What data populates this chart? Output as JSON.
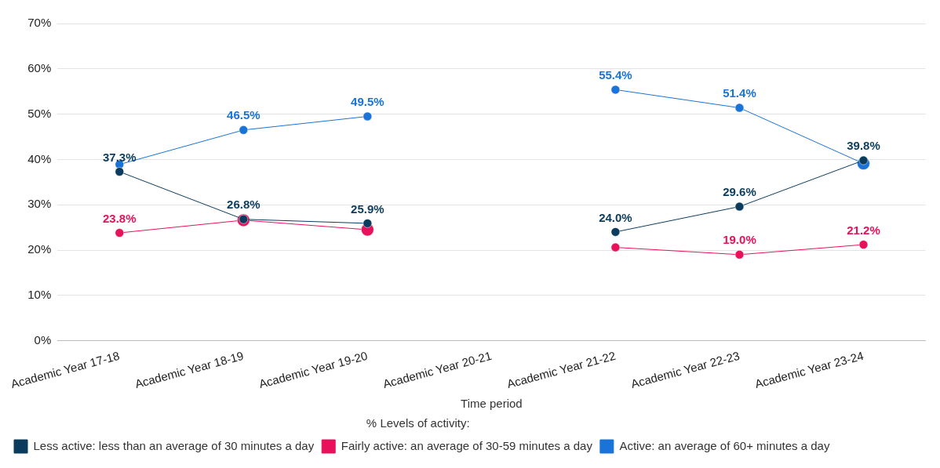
{
  "chart_data": {
    "type": "line",
    "xlabel": "Time period",
    "legend_title": "% Levels of activity:",
    "categories": [
      "Academic Year 17-18",
      "Academic Year 18-19",
      "Academic Year 19-20",
      "Academic Year 20-21",
      "Academic Year 21-22",
      "Academic Year 22-23",
      "Academic Year 23-24"
    ],
    "series": [
      {
        "name": "Less active: less than an average of 30 minutes a day",
        "color": "#0b3c5d",
        "values": [
          37.3,
          26.8,
          25.9,
          null,
          24.0,
          29.6,
          39.8
        ],
        "value_labels": [
          "37.3%",
          "26.8%",
          "25.9%",
          null,
          "24.0%",
          "29.6%",
          "39.8%"
        ]
      },
      {
        "name": "Fairly active: an average of 30-59 minutes a day",
        "color": "#e8115b",
        "values": [
          23.8,
          26.6,
          24.5,
          null,
          20.6,
          19.0,
          21.2
        ],
        "value_labels": [
          "23.8%",
          null,
          null,
          null,
          null,
          "19.0%",
          "21.2%"
        ]
      },
      {
        "name": "Active: an average of 60+ minutes a day",
        "color": "#1a73d9",
        "values": [
          38.9,
          46.5,
          49.5,
          null,
          55.4,
          51.4,
          39.1
        ],
        "value_labels": [
          null,
          "46.5%",
          "49.5%",
          null,
          "55.4%",
          "51.4%",
          null
        ]
      }
    ],
    "ylim": [
      0,
      70
    ],
    "yticks": [
      {
        "value": 0,
        "label": "0%"
      },
      {
        "value": 10,
        "label": "10%"
      },
      {
        "value": 20,
        "label": "20%"
      },
      {
        "value": 30,
        "label": "30%"
      },
      {
        "value": 40,
        "label": "40%"
      },
      {
        "value": 50,
        "label": "50%"
      },
      {
        "value": 60,
        "label": "60%"
      },
      {
        "value": 70,
        "label": "70%"
      }
    ],
    "grid": "y",
    "legend": "bottom left",
    "marker": "circle",
    "line_style": "solid"
  }
}
